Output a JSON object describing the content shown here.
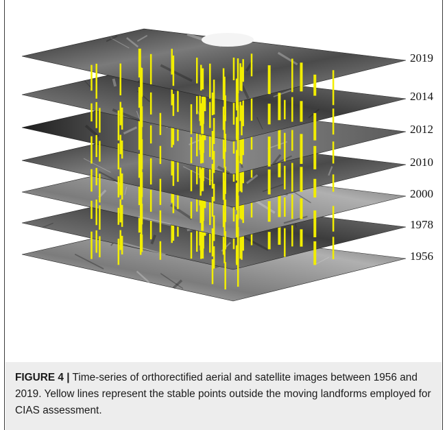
{
  "figure": {
    "years": [
      "2019",
      "2014",
      "2012",
      "2010",
      "2000",
      "1978",
      "1956"
    ],
    "marker_color": "#f2ee00"
  },
  "caption": {
    "label": "FIGURE 4 |",
    "text": " Time-series of orthorectified aerial and satellite images between 1956 and 2019. Yellow lines represent the stable points outside the moving landforms employed for CIAS assessment."
  }
}
